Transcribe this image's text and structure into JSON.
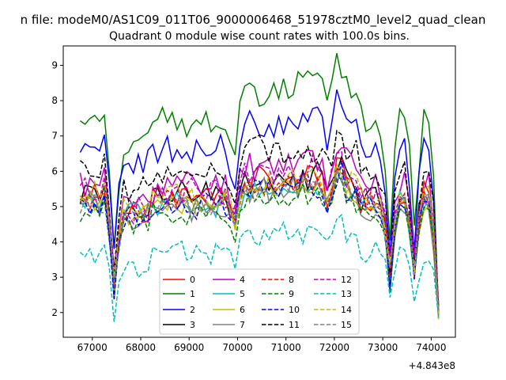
{
  "chart_data": {
    "type": "line",
    "suptitle": "n file: modeM0/AS1C09_011T06_9000006468_51978cztM0_level2_quad_clean",
    "title": "Quadrant 0 module wise count rates with 100.0s bins.",
    "xlabel": "",
    "ylabel": "",
    "x_offset_label": "+4.843e8",
    "xlim": [
      66400,
      74500
    ],
    "ylim": [
      1.3,
      9.55
    ],
    "xticks": [
      67000,
      68000,
      69000,
      70000,
      71000,
      72000,
      73000,
      74000
    ],
    "xtick_labels": [
      "67000",
      "68000",
      "69000",
      "70000",
      "71000",
      "72000",
      "73000",
      "74000"
    ],
    "yticks": [
      2,
      3,
      4,
      5,
      6,
      7,
      8,
      9
    ],
    "ytick_labels": [
      "2",
      "3",
      "4",
      "5",
      "6",
      "7",
      "8",
      "9"
    ],
    "grid": false,
    "legend": {
      "placement": "lower-center",
      "columns": 4
    },
    "x": {
      "start": 66750,
      "step": 100,
      "count": 75
    },
    "series": [
      {
        "name": "0",
        "color": "#ff0000",
        "dash": "solid",
        "base": 5.3,
        "scale": 0.7,
        "shift": 0.0
      },
      {
        "name": "1",
        "color": "#008000",
        "dash": "solid",
        "base": 7.3,
        "scale": 1.0,
        "shift": 1.1
      },
      {
        "name": "2",
        "color": "#0000ff",
        "dash": "solid",
        "base": 6.6,
        "scale": 0.9,
        "shift": 0.5
      },
      {
        "name": "3",
        "color": "#000000",
        "dash": "solid",
        "base": 5.3,
        "scale": 0.8,
        "shift": 0.0
      },
      {
        "name": "4",
        "color": "#bf00bf",
        "dash": "solid",
        "base": 5.6,
        "scale": 0.9,
        "shift": 0.2
      },
      {
        "name": "5",
        "color": "#00bfbf",
        "dash": "solid",
        "base": 5.1,
        "scale": 0.6,
        "shift": 0.0
      },
      {
        "name": "6",
        "color": "#bfbf00",
        "dash": "solid",
        "base": 5.1,
        "scale": 0.6,
        "shift": 0.0
      },
      {
        "name": "7",
        "color": "#808080",
        "dash": "solid",
        "base": 5.0,
        "scale": 0.7,
        "shift": 0.0
      },
      {
        "name": "8",
        "color": "#ff0000",
        "dash": "dashed",
        "base": 5.2,
        "scale": 0.6,
        "shift": 0.0
      },
      {
        "name": "9",
        "color": "#008000",
        "dash": "dashed",
        "base": 4.8,
        "scale": 0.6,
        "shift": 0.2
      },
      {
        "name": "10",
        "color": "#0000ff",
        "dash": "dashed",
        "base": 5.0,
        "scale": 0.7,
        "shift": 0.2
      },
      {
        "name": "11",
        "color": "#000000",
        "dash": "dashed",
        "base": 5.9,
        "scale": 0.9,
        "shift": 0.4
      },
      {
        "name": "12",
        "color": "#bf00bf",
        "dash": "dashed",
        "base": 5.4,
        "scale": 0.8,
        "shift": 0.2
      },
      {
        "name": "13",
        "color": "#00bfbf",
        "dash": "dashed",
        "base": 3.7,
        "scale": 0.6,
        "shift": 0.3
      },
      {
        "name": "14",
        "color": "#bfbf00",
        "dash": "dashed",
        "base": 5.3,
        "scale": 0.6,
        "shift": 0.1
      },
      {
        "name": "15",
        "color": "#808080",
        "dash": "dashed",
        "base": 5.1,
        "scale": 0.6,
        "shift": 0.1
      }
    ],
    "dips": [
      {
        "x": 67450,
        "depth": 2.6
      },
      {
        "x": 69950,
        "depth": 1.2
      },
      {
        "x": 71850,
        "depth": 0.6
      },
      {
        "x": 73150,
        "depth": 2.6
      },
      {
        "x": 73650,
        "depth": 2.5
      },
      {
        "x": 74150,
        "depth": 3.6
      }
    ]
  }
}
